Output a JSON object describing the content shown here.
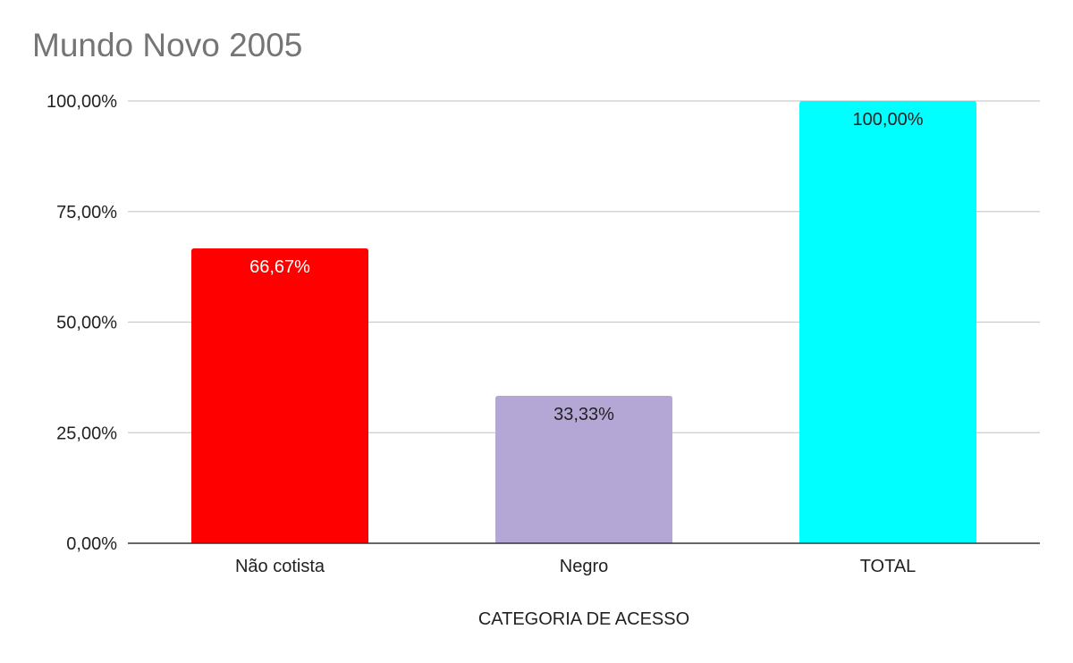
{
  "chart_data": {
    "type": "bar",
    "title": "Mundo Novo 2005",
    "xlabel": "CATEGORIA DE ACESSO",
    "ylabel": "",
    "categories": [
      "Não cotista",
      "Negro",
      "TOTAL"
    ],
    "values": [
      66.67,
      33.33,
      100.0
    ],
    "data_labels": [
      "66,67%",
      "33,33%",
      "100,00%"
    ],
    "bar_colors": [
      "#ff0000",
      "#b4a7d6",
      "#00ffff"
    ],
    "data_label_colors": [
      "#ffffff",
      "#222222",
      "#222222"
    ],
    "ylim": [
      0,
      100
    ],
    "y_ticks": [
      0,
      25,
      50,
      75,
      100
    ],
    "y_tick_labels": [
      "0,00%",
      "25,00%",
      "50,00%",
      "75,00%",
      "100,00%"
    ],
    "grid": true,
    "legend": "none"
  }
}
